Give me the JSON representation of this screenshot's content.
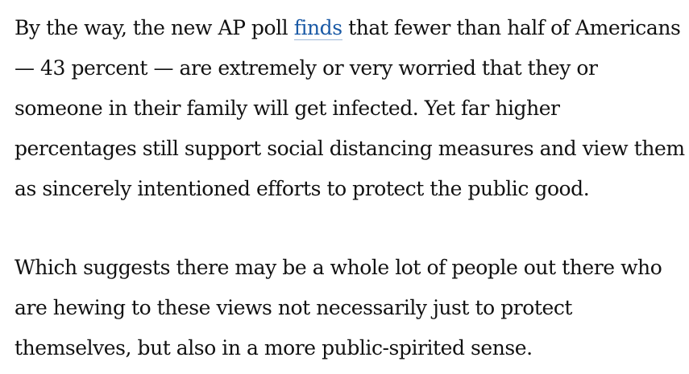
{
  "article": {
    "paragraph_1": {
      "before_link": "By the way, the new AP poll ",
      "link_text": "finds",
      "after_link": " that fewer than half of Americans — 43 percent — are extremely or very worried that they or someone in their family will get infected. Yet far higher percentages still support social distancing measures and view them as sincerely intentioned efforts to protect the public good."
    },
    "paragraph_2": "Which suggests there may be a whole lot of people out there who are hewing to these views not necessarily just to protect themselves, but also in a more public-spirited sense."
  },
  "colors": {
    "text": "#111111",
    "link": "#1a5aa6",
    "background": "#ffffff"
  }
}
